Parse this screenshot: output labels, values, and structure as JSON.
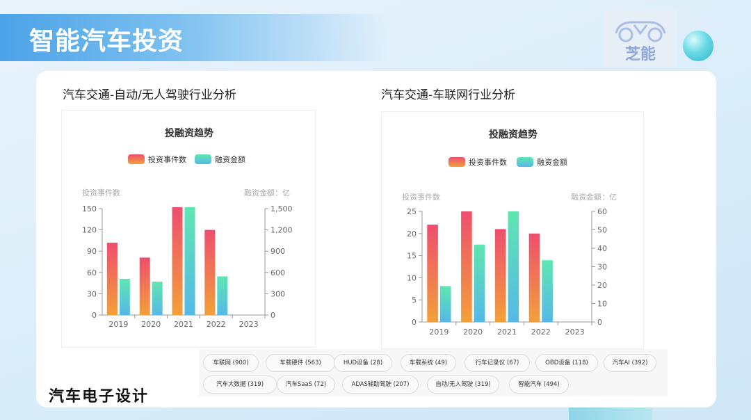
{
  "header": {
    "title": "智能汽车投资"
  },
  "logo": {
    "text": "芝能"
  },
  "footer": {
    "brand": "汽车电子设计"
  },
  "colors": {
    "events_top": "#ee4e6e",
    "events_bottom": "#f2a03a",
    "amount_top": "#5fe6b0",
    "amount_bottom": "#56b8e8"
  },
  "chart_data": [
    {
      "type": "bar",
      "section_title": "汽车交通-自动/无人驾驶行业分析",
      "title": "投融资趋势",
      "categories": [
        "2019",
        "2020",
        "2021",
        "2022",
        "2023"
      ],
      "series": [
        {
          "name": "投资事件数",
          "axis": "left",
          "values": [
            102,
            81,
            152,
            120,
            0
          ]
        },
        {
          "name": "融资金额",
          "axis": "right",
          "values": [
            510,
            470,
            1520,
            545,
            0
          ]
        }
      ],
      "ylabel_left": "投资事件数",
      "ylabel_right": "融资金额：亿",
      "ylim_left": [
        0,
        150
      ],
      "yticks_left": [
        "0",
        "30",
        "60",
        "90",
        "120",
        "150"
      ],
      "ylim_right": [
        0,
        1500
      ],
      "yticks_right": [
        "0",
        "300",
        "600",
        "900",
        "1,200",
        "1,500"
      ],
      "legend": "top-center"
    },
    {
      "type": "bar",
      "section_title": "汽车交通-车联网行业分析",
      "title": "投融资趋势",
      "categories": [
        "2019",
        "2020",
        "2021",
        "2022",
        "2023"
      ],
      "series": [
        {
          "name": "投资事件数",
          "axis": "left",
          "values": [
            22,
            25,
            21,
            20,
            0
          ]
        },
        {
          "name": "融资金额",
          "axis": "right",
          "values": [
            19.5,
            42,
            60,
            33.5,
            0
          ]
        }
      ],
      "ylabel_left": "投资事件数",
      "ylabel_right": "融资金额：亿",
      "ylim_left": [
        0,
        25
      ],
      "yticks_left": [
        "0",
        "5",
        "10",
        "15",
        "20",
        "25"
      ],
      "ylim_right": [
        0,
        60
      ],
      "yticks_right": [
        "0",
        "10",
        "20",
        "30",
        "40",
        "50",
        "60"
      ],
      "legend": "top-center"
    }
  ],
  "tags": [
    "车联网 (900)",
    "车载硬件 (563)",
    "HUD设备 (28)",
    "车载系统 (49)",
    "行车记录仪 (67)",
    "OBD设备 (118)",
    "汽车AI (392)",
    "汽车大数据 (319)",
    "汽车SaaS (72)",
    "ADAS辅助驾驶 (207)",
    "自动/无人驾驶 (319)",
    "智能汽车 (494)"
  ]
}
